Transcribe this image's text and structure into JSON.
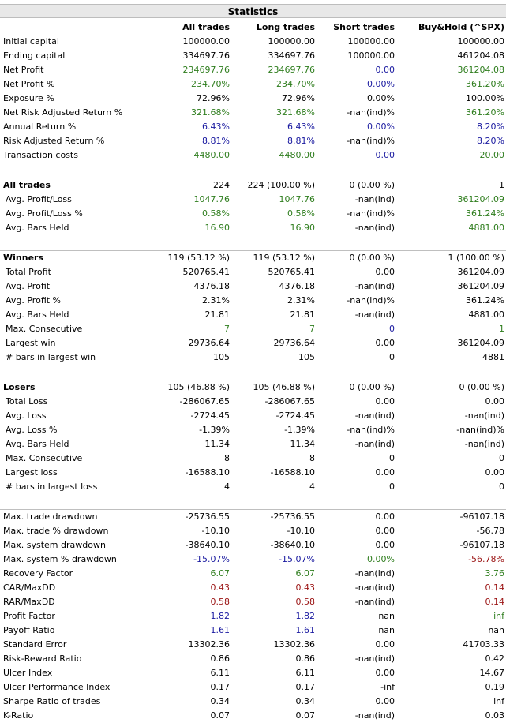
{
  "title": "Statistics",
  "headers": [
    "All trades",
    "Long trades",
    "Short trades",
    "Buy&Hold (^SPX)"
  ],
  "colors": {
    "green": "#2e7d1d",
    "blue": "#1a1aa0",
    "red": "#9b1414",
    "black": "#000000"
  },
  "sections": [
    {
      "rows": [
        {
          "label": "Initial capital",
          "cells": [
            [
              "100000.00",
              "k"
            ],
            [
              "100000.00",
              "k"
            ],
            [
              "100000.00",
              "k"
            ],
            [
              "100000.00",
              "k"
            ]
          ]
        },
        {
          "label": "Ending capital",
          "cells": [
            [
              "334697.76",
              "k"
            ],
            [
              "334697.76",
              "k"
            ],
            [
              "100000.00",
              "k"
            ],
            [
              "461204.08",
              "k"
            ]
          ]
        },
        {
          "label": "Net Profit",
          "cells": [
            [
              "234697.76",
              "g"
            ],
            [
              "234697.76",
              "g"
            ],
            [
              "0.00",
              "b"
            ],
            [
              "361204.08",
              "g"
            ]
          ]
        },
        {
          "label": "Net Profit %",
          "cells": [
            [
              "234.70%",
              "g"
            ],
            [
              "234.70%",
              "g"
            ],
            [
              "0.00%",
              "b"
            ],
            [
              "361.20%",
              "g"
            ]
          ]
        },
        {
          "label": "Exposure %",
          "cells": [
            [
              "72.96%",
              "k"
            ],
            [
              "72.96%",
              "k"
            ],
            [
              "0.00%",
              "k"
            ],
            [
              "100.00%",
              "k"
            ]
          ]
        },
        {
          "label": "Net Risk Adjusted Return %",
          "cells": [
            [
              "321.68%",
              "g"
            ],
            [
              "321.68%",
              "g"
            ],
            [
              "-nan(ind)%",
              "k"
            ],
            [
              "361.20%",
              "g"
            ]
          ]
        },
        {
          "label": "Annual Return %",
          "cells": [
            [
              "6.43%",
              "b"
            ],
            [
              "6.43%",
              "b"
            ],
            [
              "0.00%",
              "b"
            ],
            [
              "8.20%",
              "b"
            ]
          ]
        },
        {
          "label": "Risk Adjusted Return %",
          "cells": [
            [
              "8.81%",
              "b"
            ],
            [
              "8.81%",
              "b"
            ],
            [
              "-nan(ind)%",
              "k"
            ],
            [
              "8.20%",
              "b"
            ]
          ]
        },
        {
          "label": "Transaction costs",
          "cells": [
            [
              "4480.00",
              "g"
            ],
            [
              "4480.00",
              "g"
            ],
            [
              "0.00",
              "b"
            ],
            [
              "20.00",
              "g"
            ]
          ]
        }
      ]
    },
    {
      "rows": [
        {
          "label": "All trades",
          "head": true,
          "cells": [
            [
              "224",
              "k"
            ],
            [
              "224 (100.00 %)",
              "k"
            ],
            [
              "0 (0.00 %)",
              "k"
            ],
            [
              "1",
              "k"
            ]
          ]
        },
        {
          "label": "Avg. Profit/Loss",
          "sub": true,
          "cells": [
            [
              "1047.76",
              "g"
            ],
            [
              "1047.76",
              "g"
            ],
            [
              "-nan(ind)",
              "k"
            ],
            [
              "361204.09",
              "g"
            ]
          ]
        },
        {
          "label": "Avg. Profit/Loss %",
          "sub": true,
          "cells": [
            [
              "0.58%",
              "g"
            ],
            [
              "0.58%",
              "g"
            ],
            [
              "-nan(ind)%",
              "k"
            ],
            [
              "361.24%",
              "g"
            ]
          ]
        },
        {
          "label": "Avg. Bars Held",
          "sub": true,
          "cells": [
            [
              "16.90",
              "g"
            ],
            [
              "16.90",
              "g"
            ],
            [
              "-nan(ind)",
              "k"
            ],
            [
              "4881.00",
              "g"
            ]
          ]
        }
      ]
    },
    {
      "rows": [
        {
          "label": "Winners",
          "head": true,
          "cells": [
            [
              "119 (53.12 %)",
              "k"
            ],
            [
              "119 (53.12 %)",
              "k"
            ],
            [
              "0 (0.00 %)",
              "k"
            ],
            [
              "1 (100.00 %)",
              "k"
            ]
          ]
        },
        {
          "label": "Total Profit",
          "sub": true,
          "cells": [
            [
              "520765.41",
              "k"
            ],
            [
              "520765.41",
              "k"
            ],
            [
              "0.00",
              "k"
            ],
            [
              "361204.09",
              "k"
            ]
          ]
        },
        {
          "label": "Avg. Profit",
          "sub": true,
          "cells": [
            [
              "4376.18",
              "k"
            ],
            [
              "4376.18",
              "k"
            ],
            [
              "-nan(ind)",
              "k"
            ],
            [
              "361204.09",
              "k"
            ]
          ]
        },
        {
          "label": "Avg. Profit %",
          "sub": true,
          "cells": [
            [
              "2.31%",
              "k"
            ],
            [
              "2.31%",
              "k"
            ],
            [
              "-nan(ind)%",
              "k"
            ],
            [
              "361.24%",
              "k"
            ]
          ]
        },
        {
          "label": "Avg. Bars Held",
          "sub": true,
          "cells": [
            [
              "21.81",
              "k"
            ],
            [
              "21.81",
              "k"
            ],
            [
              "-nan(ind)",
              "k"
            ],
            [
              "4881.00",
              "k"
            ]
          ]
        },
        {
          "label": "Max. Consecutive",
          "sub": true,
          "cells": [
            [
              "7",
              "g"
            ],
            [
              "7",
              "g"
            ],
            [
              "0",
              "b"
            ],
            [
              "1",
              "g"
            ]
          ]
        },
        {
          "label": "Largest win",
          "sub": true,
          "cells": [
            [
              "29736.64",
              "k"
            ],
            [
              "29736.64",
              "k"
            ],
            [
              "0.00",
              "k"
            ],
            [
              "361204.09",
              "k"
            ]
          ]
        },
        {
          "label": "# bars in largest win",
          "sub": true,
          "cells": [
            [
              "105",
              "k"
            ],
            [
              "105",
              "k"
            ],
            [
              "0",
              "k"
            ],
            [
              "4881",
              "k"
            ]
          ]
        }
      ]
    },
    {
      "rows": [
        {
          "label": "Losers",
          "head": true,
          "cells": [
            [
              "105 (46.88 %)",
              "k"
            ],
            [
              "105 (46.88 %)",
              "k"
            ],
            [
              "0 (0.00 %)",
              "k"
            ],
            [
              "0 (0.00 %)",
              "k"
            ]
          ]
        },
        {
          "label": "Total Loss",
          "sub": true,
          "cells": [
            [
              "-286067.65",
              "k"
            ],
            [
              "-286067.65",
              "k"
            ],
            [
              "0.00",
              "k"
            ],
            [
              "0.00",
              "k"
            ]
          ]
        },
        {
          "label": "Avg. Loss",
          "sub": true,
          "cells": [
            [
              "-2724.45",
              "k"
            ],
            [
              "-2724.45",
              "k"
            ],
            [
              "-nan(ind)",
              "k"
            ],
            [
              "-nan(ind)",
              "k"
            ]
          ]
        },
        {
          "label": "Avg. Loss %",
          "sub": true,
          "cells": [
            [
              "-1.39%",
              "k"
            ],
            [
              "-1.39%",
              "k"
            ],
            [
              "-nan(ind)%",
              "k"
            ],
            [
              "-nan(ind)%",
              "k"
            ]
          ]
        },
        {
          "label": "Avg. Bars Held",
          "sub": true,
          "cells": [
            [
              "11.34",
              "k"
            ],
            [
              "11.34",
              "k"
            ],
            [
              "-nan(ind)",
              "k"
            ],
            [
              "-nan(ind)",
              "k"
            ]
          ]
        },
        {
          "label": "Max. Consecutive",
          "sub": true,
          "cells": [
            [
              "8",
              "k"
            ],
            [
              "8",
              "k"
            ],
            [
              "0",
              "k"
            ],
            [
              "0",
              "k"
            ]
          ]
        },
        {
          "label": "Largest loss",
          "sub": true,
          "cells": [
            [
              "-16588.10",
              "k"
            ],
            [
              "-16588.10",
              "k"
            ],
            [
              "0.00",
              "k"
            ],
            [
              "0.00",
              "k"
            ]
          ]
        },
        {
          "label": "# bars in largest loss",
          "sub": true,
          "cells": [
            [
              "4",
              "k"
            ],
            [
              "4",
              "k"
            ],
            [
              "0",
              "k"
            ],
            [
              "0",
              "k"
            ]
          ]
        }
      ]
    },
    {
      "rows": [
        {
          "label": "Max. trade drawdown",
          "cells": [
            [
              "-25736.55",
              "k"
            ],
            [
              "-25736.55",
              "k"
            ],
            [
              "0.00",
              "k"
            ],
            [
              "-96107.18",
              "k"
            ]
          ]
        },
        {
          "label": "Max. trade % drawdown",
          "cells": [
            [
              "-10.10",
              "k"
            ],
            [
              "-10.10",
              "k"
            ],
            [
              "0.00",
              "k"
            ],
            [
              "-56.78",
              "k"
            ]
          ]
        },
        {
          "label": "Max. system drawdown",
          "cells": [
            [
              "-38640.10",
              "k"
            ],
            [
              "-38640.10",
              "k"
            ],
            [
              "0.00",
              "k"
            ],
            [
              "-96107.18",
              "k"
            ]
          ]
        },
        {
          "label": "Max. system % drawdown",
          "cells": [
            [
              "-15.07%",
              "b"
            ],
            [
              "-15.07%",
              "b"
            ],
            [
              "0.00%",
              "g"
            ],
            [
              "-56.78%",
              "r"
            ]
          ]
        },
        {
          "label": "Recovery Factor",
          "cells": [
            [
              "6.07",
              "g"
            ],
            [
              "6.07",
              "g"
            ],
            [
              "-nan(ind)",
              "k"
            ],
            [
              "3.76",
              "g"
            ]
          ]
        },
        {
          "label": "CAR/MaxDD",
          "cells": [
            [
              "0.43",
              "r"
            ],
            [
              "0.43",
              "r"
            ],
            [
              "-nan(ind)",
              "k"
            ],
            [
              "0.14",
              "r"
            ]
          ]
        },
        {
          "label": "RAR/MaxDD",
          "cells": [
            [
              "0.58",
              "r"
            ],
            [
              "0.58",
              "r"
            ],
            [
              "-nan(ind)",
              "k"
            ],
            [
              "0.14",
              "r"
            ]
          ]
        },
        {
          "label": "Profit Factor",
          "cells": [
            [
              "1.82",
              "b"
            ],
            [
              "1.82",
              "b"
            ],
            [
              "nan",
              "k"
            ],
            [
              "inf",
              "g"
            ]
          ]
        },
        {
          "label": "Payoff Ratio",
          "cells": [
            [
              "1.61",
              "b"
            ],
            [
              "1.61",
              "b"
            ],
            [
              "nan",
              "k"
            ],
            [
              "nan",
              "k"
            ]
          ]
        },
        {
          "label": "Standard Error",
          "cells": [
            [
              "13302.36",
              "k"
            ],
            [
              "13302.36",
              "k"
            ],
            [
              "0.00",
              "k"
            ],
            [
              "41703.33",
              "k"
            ]
          ]
        },
        {
          "label": "Risk-Reward Ratio",
          "cells": [
            [
              "0.86",
              "k"
            ],
            [
              "0.86",
              "k"
            ],
            [
              "-nan(ind)",
              "k"
            ],
            [
              "0.42",
              "k"
            ]
          ]
        },
        {
          "label": "Ulcer Index",
          "cells": [
            [
              "6.11",
              "k"
            ],
            [
              "6.11",
              "k"
            ],
            [
              "0.00",
              "k"
            ],
            [
              "14.67",
              "k"
            ]
          ]
        },
        {
          "label": "Ulcer Performance Index",
          "cells": [
            [
              "0.17",
              "k"
            ],
            [
              "0.17",
              "k"
            ],
            [
              "-inf",
              "k"
            ],
            [
              "0.19",
              "k"
            ]
          ]
        },
        {
          "label": "Sharpe Ratio of trades",
          "cells": [
            [
              "0.34",
              "k"
            ],
            [
              "0.34",
              "k"
            ],
            [
              "0.00",
              "k"
            ],
            [
              "inf",
              "k"
            ]
          ]
        },
        {
          "label": "K-Ratio",
          "cells": [
            [
              "0.07",
              "k"
            ],
            [
              "0.07",
              "k"
            ],
            [
              "-nan(ind)",
              "k"
            ],
            [
              "0.03",
              "k"
            ]
          ]
        }
      ]
    }
  ]
}
